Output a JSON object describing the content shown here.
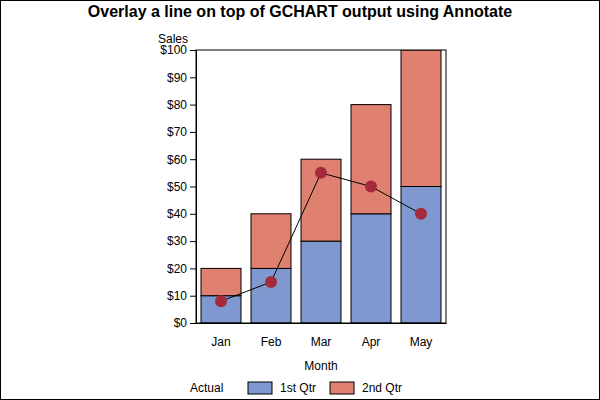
{
  "chart_data": {
    "type": "bar",
    "title": "Overlay a line on top of GCHART output using Annotate",
    "x_label": "Month",
    "y_label": "Sales",
    "legend_title": "Actual",
    "legend": "bottom",
    "stacked": true,
    "categories": [
      "Jan",
      "Feb",
      "Mar",
      "Apr",
      "May"
    ],
    "series": [
      {
        "name": "1st Qtr",
        "type": "bar",
        "color": "#7f98d0",
        "values": [
          10,
          20,
          30,
          40,
          50
        ]
      },
      {
        "name": "2nd Qtr",
        "type": "bar",
        "color": "#e08070",
        "values": [
          10,
          20,
          30,
          40,
          50
        ]
      },
      {
        "type": "line",
        "color": "#a52a3c",
        "marker": "circle",
        "line_style": "solid",
        "values": [
          8,
          15,
          55,
          50,
          40
        ]
      }
    ],
    "ylim": [
      0,
      100
    ],
    "yticks": [
      {
        "value": 0,
        "label": "$0"
      },
      {
        "value": 10,
        "label": "$10"
      },
      {
        "value": 20,
        "label": "$20"
      },
      {
        "value": 30,
        "label": "$30"
      },
      {
        "value": 40,
        "label": "$40"
      },
      {
        "value": 50,
        "label": "$50"
      },
      {
        "value": 60,
        "label": "$60"
      },
      {
        "value": 70,
        "label": "$70"
      },
      {
        "value": 80,
        "label": "$80"
      },
      {
        "value": 90,
        "label": "$90"
      },
      {
        "value": 100,
        "label": "$100"
      }
    ]
  }
}
